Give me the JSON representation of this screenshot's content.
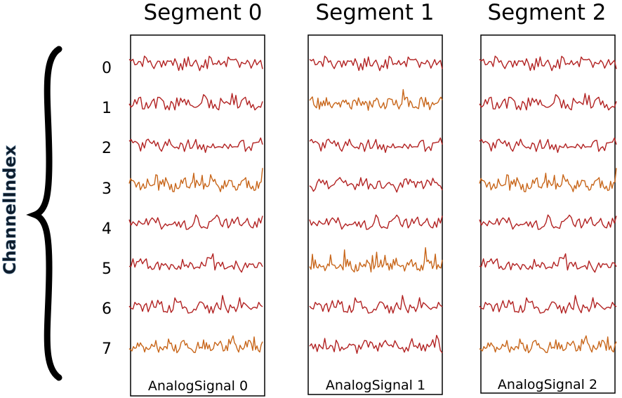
{
  "axis_label": "ChannelIndex",
  "channel_labels": [
    "0",
    "1",
    "2",
    "3",
    "4",
    "5",
    "6",
    "7"
  ],
  "segments": [
    {
      "title": "Segment 0",
      "signal_label": "AnalogSignal 0",
      "highlighted_channels": [
        3,
        7
      ]
    },
    {
      "title": "Segment 1",
      "signal_label": "AnalogSignal 1",
      "highlighted_channels": [
        1,
        5
      ]
    },
    {
      "title": "Segment 2",
      "signal_label": "AnalogSignal 2",
      "highlighted_channels": [
        3,
        7
      ]
    }
  ],
  "colors": {
    "trace": "#b22222",
    "highlight": "#c8661a",
    "frame": "#000000",
    "brace": "#000000",
    "axis_label_fill": "#0d1b2a",
    "axis_label_outline": "#5b7c99"
  }
}
